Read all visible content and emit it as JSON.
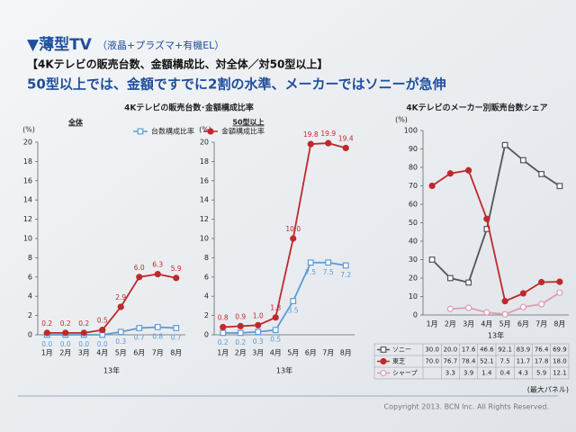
{
  "slide": {
    "title": "▼薄型TV",
    "title_note": "（液晶+プラズマ+有機EL）",
    "subtitle": "【4Kテレビの販売台数、金額構成比、対全体／対50型以上】",
    "headline": "50型以上では、金額ですでに2割の水準、メーカーではソニーが急伸",
    "copyright": "Copyright 2013. BCN Inc. All Rights Reserved."
  },
  "chart_data": [
    {
      "type": "line",
      "title": "4Kテレビの販売台数･金額構成比率",
      "panels": [
        "全体",
        "50型以上"
      ],
      "categories": [
        "1月",
        "2月",
        "3月",
        "4月",
        "5月",
        "6月",
        "7月",
        "8月"
      ],
      "xlabel": "13年",
      "ylabel": "(%)",
      "ylim": [
        0,
        20
      ],
      "yticks": [
        0,
        2,
        4,
        6,
        8,
        10,
        12,
        14,
        16,
        18,
        20
      ],
      "series": [
        {
          "name": "台数構成比率",
          "color": "#5b9bd5",
          "marker": "square-open",
          "values": [
            [
              0.0,
              0.0,
              0.0,
              0.0,
              0.3,
              0.7,
              0.8,
              0.7
            ],
            [
              0.2,
              0.2,
              0.3,
              0.5,
              3.5,
              7.5,
              7.5,
              7.2
            ]
          ],
          "value_labels": [
            [
              "0.0",
              "0.0",
              "0.0",
              "0.0",
              "0.3",
              "0.7",
              "0.8",
              "0.7"
            ],
            [
              "0.2",
              "0.2",
              "0.3",
              "0.5",
              "3.5",
              "7.5",
              "7.5",
              "7.2"
            ]
          ]
        },
        {
          "name": "金額構成比率",
          "color": "#c0282d",
          "marker": "circle",
          "values": [
            [
              0.2,
              0.2,
              0.2,
              0.5,
              2.9,
              6.0,
              6.3,
              5.9
            ],
            [
              0.8,
              0.9,
              1.0,
              1.8,
              10.0,
              19.8,
              19.9,
              19.4
            ]
          ],
          "value_labels": [
            [
              "0.2",
              "0.2",
              "0.2",
              "0.5",
              "2.9",
              "6.0",
              "6.3",
              "5.9"
            ],
            [
              "0.8",
              "0.9",
              "1.0",
              "1.8",
              "10.0",
              "19.8",
              "19.9",
              "19.4"
            ]
          ]
        }
      ]
    },
    {
      "type": "line",
      "title": "4Kテレビのメーカー別販売台数シェア",
      "categories": [
        "1月",
        "2月",
        "3月",
        "4月",
        "5月",
        "6月",
        "7月",
        "8月"
      ],
      "xlabel": "13年",
      "ylabel": "(%)",
      "note": "(最大パネル)",
      "ylim": [
        0,
        100
      ],
      "yticks": [
        0,
        10,
        20,
        30,
        40,
        50,
        60,
        70,
        80,
        90,
        100
      ],
      "series": [
        {
          "name": "ソニー",
          "color": "#555555",
          "marker": "square-open",
          "values": [
            30.0,
            20.0,
            17.6,
            46.6,
            92.1,
            83.9,
            76.4,
            69.9
          ],
          "value_labels": [
            "30.0",
            "20.0",
            "17.6",
            "46.6",
            "92.1",
            "83.9",
            "76.4",
            "69.9"
          ]
        },
        {
          "name": "東芝",
          "color": "#c0282d",
          "marker": "circle",
          "values": [
            70.0,
            76.7,
            78.4,
            52.1,
            7.5,
            11.7,
            17.8,
            18.0
          ],
          "value_labels": [
            "70.0",
            "76.7",
            "78.4",
            "52.1",
            "7.5",
            "11.7",
            "17.8",
            "18.0"
          ]
        },
        {
          "name": "シャープ",
          "color": "#e39aae",
          "marker": "circle-open",
          "values": [
            null,
            3.3,
            3.9,
            1.4,
            0.4,
            4.3,
            5.9,
            12.1
          ],
          "value_labels": [
            null,
            "3.3",
            "3.9",
            "1.4",
            "0.4",
            "4.3",
            "5.9",
            "12.1"
          ]
        }
      ]
    }
  ]
}
